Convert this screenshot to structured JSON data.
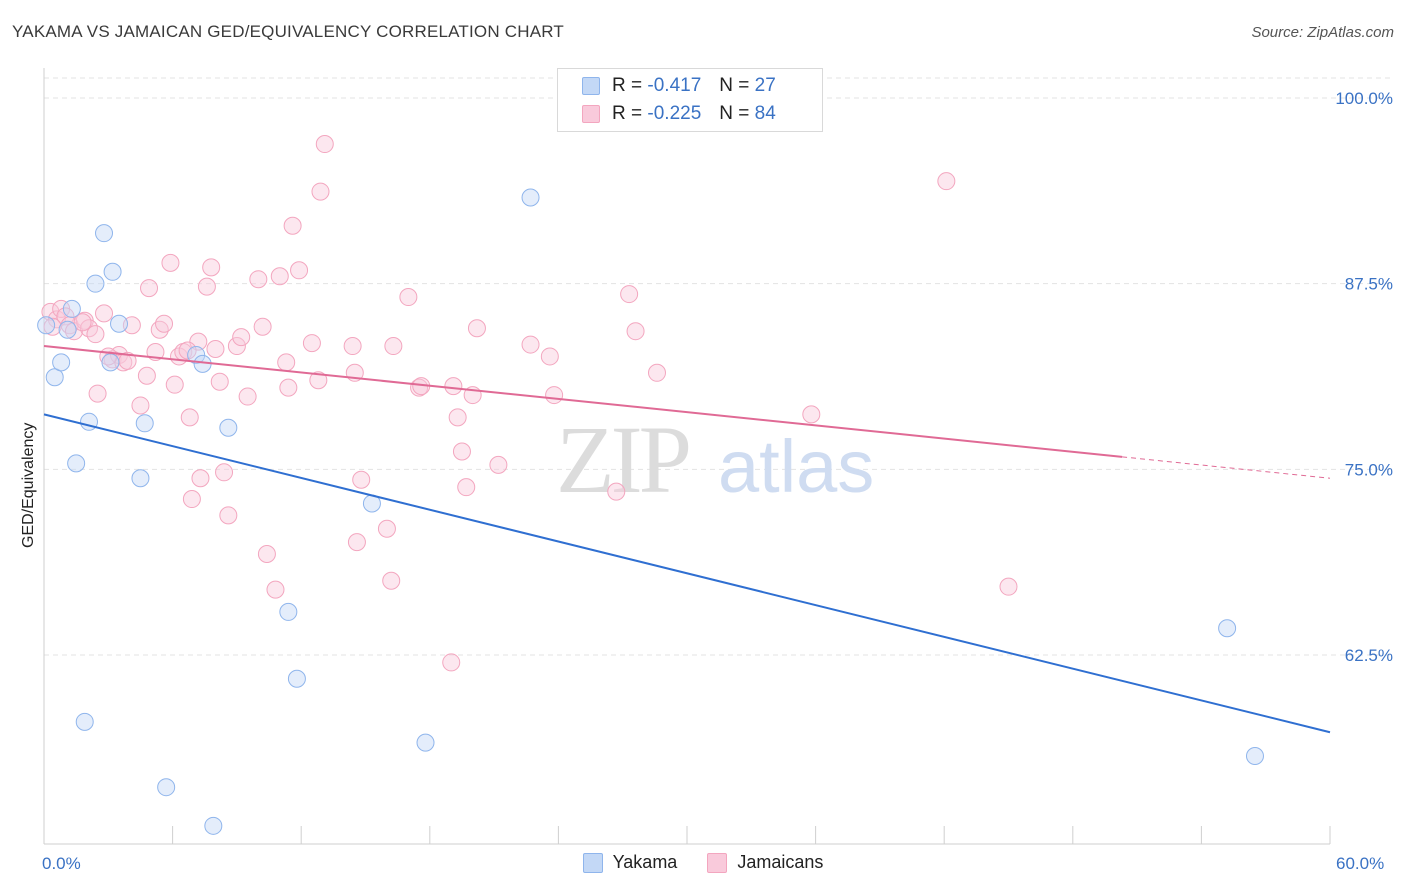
{
  "title": "YAKAMA VS JAMAICAN GED/EQUIVALENCY CORRELATION CHART",
  "source": "Source: ZipAtlas.com",
  "watermark": {
    "zip": "ZIP",
    "atlas": "atlas"
  },
  "legend": {
    "rows": [
      {
        "r_label": "R =",
        "r_value": "-0.417",
        "n_label": "N =",
        "n_value": "27"
      },
      {
        "r_label": "R =",
        "r_value": "-0.225",
        "n_label": "N =",
        "n_value": "84"
      }
    ]
  },
  "bottom_legend": {
    "yakama": "Yakama",
    "jamaicans": "Jamaicans"
  },
  "chart_data": {
    "type": "scatter",
    "title": "YAKAMA VS JAMAICAN GED/EQUIVALENCY CORRELATION CHART",
    "xlabel": "",
    "ylabel": "GED/Equivalency",
    "xlim": [
      0,
      60
    ],
    "ylim": [
      50,
      102
    ],
    "x_tick_labels": [
      "0.0%",
      "60.0%"
    ],
    "y_ticks": [
      62.5,
      75.0,
      87.5,
      100.0
    ],
    "y_tick_labels": [
      "62.5%",
      "75.0%",
      "87.5%",
      "100.0%"
    ],
    "colors": {
      "yakama": "#8fb5ec",
      "yakama_line": "#2f6fd1",
      "jamaicans": "#f3a6bf",
      "jamaicans_line": "#e06a95"
    },
    "series": [
      {
        "name": "Yakama",
        "r": -0.417,
        "n": 27,
        "trend": {
          "x0": 0,
          "y0": 78.7,
          "x1": 60,
          "y1": 57.3
        },
        "points": [
          [
            0.1,
            84.7
          ],
          [
            0.5,
            81.2
          ],
          [
            0.8,
            82.2
          ],
          [
            1.1,
            84.4
          ],
          [
            1.3,
            85.8
          ],
          [
            1.5,
            75.4
          ],
          [
            1.9,
            58.0
          ],
          [
            2.1,
            78.2
          ],
          [
            2.4,
            87.5
          ],
          [
            2.8,
            90.9
          ],
          [
            3.1,
            82.2
          ],
          [
            3.2,
            88.3
          ],
          [
            3.5,
            84.8
          ],
          [
            4.5,
            74.4
          ],
          [
            4.7,
            78.1
          ],
          [
            5.7,
            53.6
          ],
          [
            7.1,
            82.7
          ],
          [
            7.4,
            82.1
          ],
          [
            7.9,
            51.0
          ],
          [
            8.6,
            77.8
          ],
          [
            11.4,
            65.4
          ],
          [
            11.8,
            60.9
          ],
          [
            15.3,
            72.7
          ],
          [
            17.8,
            56.6
          ],
          [
            22.7,
            93.3
          ],
          [
            55.2,
            64.3
          ],
          [
            56.5,
            55.7
          ]
        ]
      },
      {
        "name": "Jamaicans",
        "r": -0.225,
        "n": 84,
        "trend": {
          "x0": 0,
          "y0": 83.3,
          "x1": 60,
          "y1": 74.4,
          "solid_until_x": 50.3
        },
        "points": [
          [
            0.3,
            85.6
          ],
          [
            0.6,
            85.1
          ],
          [
            0.8,
            85.8
          ],
          [
            1.0,
            85.3
          ],
          [
            1.2,
            84.7
          ],
          [
            1.4,
            84.3
          ],
          [
            1.9,
            85.0
          ],
          [
            2.1,
            84.5
          ],
          [
            2.4,
            84.1
          ],
          [
            2.5,
            80.1
          ],
          [
            2.8,
            85.5
          ],
          [
            3.2,
            82.4
          ],
          [
            3.5,
            82.7
          ],
          [
            3.7,
            82.2
          ],
          [
            3.9,
            82.3
          ],
          [
            4.1,
            84.7
          ],
          [
            4.5,
            79.3
          ],
          [
            4.8,
            81.3
          ],
          [
            4.9,
            87.2
          ],
          [
            5.2,
            82.9
          ],
          [
            5.4,
            84.4
          ],
          [
            5.6,
            84.8
          ],
          [
            5.9,
            88.9
          ],
          [
            6.1,
            80.7
          ],
          [
            6.3,
            82.6
          ],
          [
            6.5,
            82.9
          ],
          [
            6.8,
            78.5
          ],
          [
            6.9,
            73.0
          ],
          [
            7.2,
            83.6
          ],
          [
            7.3,
            74.4
          ],
          [
            7.6,
            87.3
          ],
          [
            7.8,
            88.6
          ],
          [
            8.0,
            83.1
          ],
          [
            8.2,
            80.9
          ],
          [
            8.4,
            74.8
          ],
          [
            8.6,
            71.9
          ],
          [
            9.0,
            83.3
          ],
          [
            9.2,
            83.9
          ],
          [
            9.5,
            79.9
          ],
          [
            10.0,
            87.8
          ],
          [
            10.2,
            84.6
          ],
          [
            10.4,
            69.3
          ],
          [
            10.8,
            66.9
          ],
          [
            11.0,
            88.0
          ],
          [
            11.3,
            82.2
          ],
          [
            11.4,
            80.5
          ],
          [
            11.6,
            91.4
          ],
          [
            11.9,
            88.4
          ],
          [
            12.5,
            83.5
          ],
          [
            12.8,
            81.0
          ],
          [
            12.9,
            93.7
          ],
          [
            13.1,
            96.9
          ],
          [
            14.4,
            83.3
          ],
          [
            14.5,
            81.5
          ],
          [
            14.6,
            70.1
          ],
          [
            14.8,
            74.3
          ],
          [
            16.0,
            71.0
          ],
          [
            16.2,
            67.5
          ],
          [
            16.3,
            83.3
          ],
          [
            17.0,
            86.6
          ],
          [
            17.5,
            80.5
          ],
          [
            17.6,
            80.6
          ],
          [
            19.0,
            62.0
          ],
          [
            19.1,
            80.6
          ],
          [
            19.3,
            78.5
          ],
          [
            19.5,
            76.2
          ],
          [
            19.7,
            73.8
          ],
          [
            20.0,
            80.0
          ],
          [
            20.2,
            84.5
          ],
          [
            21.2,
            75.3
          ],
          [
            22.7,
            83.4
          ],
          [
            23.6,
            82.6
          ],
          [
            23.8,
            80.0
          ],
          [
            26.7,
            73.5
          ],
          [
            27.3,
            86.8
          ],
          [
            27.6,
            84.3
          ],
          [
            28.6,
            81.5
          ],
          [
            35.8,
            78.7
          ],
          [
            42.1,
            94.4
          ],
          [
            45.0,
            67.1
          ],
          [
            0.4,
            84.6
          ],
          [
            1.8,
            84.9
          ],
          [
            3.0,
            82.6
          ],
          [
            6.7,
            83.0
          ]
        ]
      }
    ]
  }
}
